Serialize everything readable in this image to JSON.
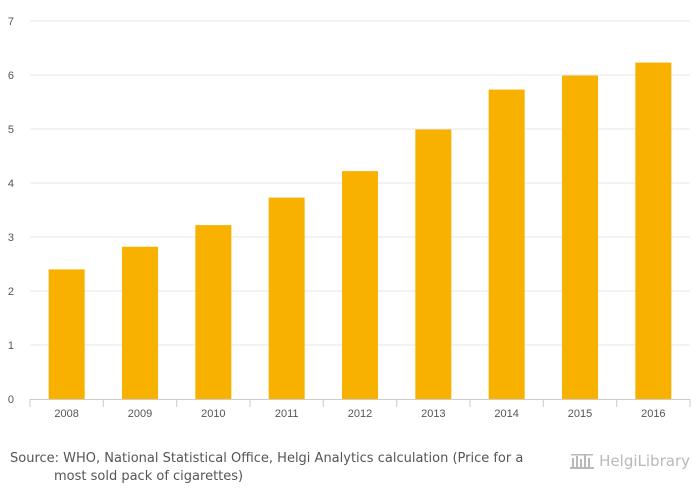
{
  "chart_data": {
    "type": "bar",
    "categories": [
      "2008",
      "2009",
      "2010",
      "2011",
      "2012",
      "2013",
      "2014",
      "2015",
      "2016"
    ],
    "values": [
      2.4,
      2.82,
      3.22,
      3.73,
      4.22,
      4.99,
      5.73,
      5.99,
      6.23
    ],
    "title": "",
    "xlabel": "",
    "ylabel": "",
    "ylim": [
      0,
      7
    ],
    "yticks": [
      0,
      1,
      2,
      3,
      4,
      5,
      6,
      7
    ],
    "grid": true,
    "legend": "none"
  },
  "colors": {
    "bar": "#f9b100",
    "grid": "#e6e6e6",
    "axis": "#cccccc",
    "text": "#555555",
    "logo": "#b9b9b9"
  },
  "footer": {
    "source_line1": "Source: WHO, National Statistical Office, Helgi Analytics calculation (Price for a",
    "source_line2": "most sold pack of cigarettes)",
    "logo_text": "HelgiLibrary"
  }
}
